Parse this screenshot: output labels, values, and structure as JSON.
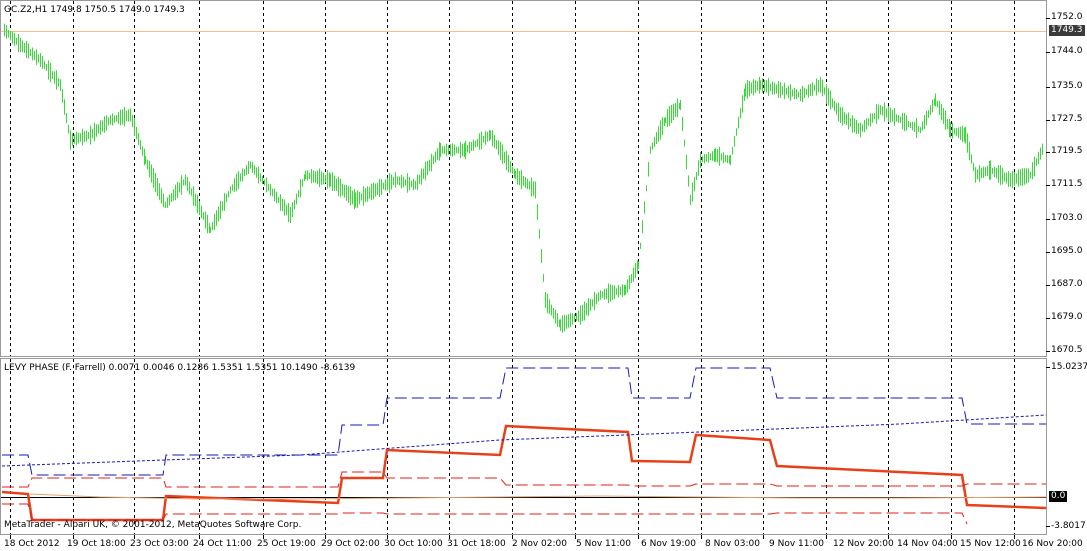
{
  "price_chart": {
    "header": "GC.Z2,H1  1749.8 1750.5 1749.0 1749.3",
    "last_price_badge": "1749.3",
    "y_ticks": [
      "1752.0",
      "1744.0",
      "1735.0",
      "1727.5",
      "1719.5",
      "1711.5",
      "1703.0",
      "1695.0",
      "1687.0",
      "1679.0",
      "1670.5"
    ],
    "colors": {
      "bars": "#33dd33",
      "last_price_line": "#f5c08a",
      "grid": "#000000"
    }
  },
  "indicator": {
    "header": "LEVY PHASE (F. Farrell) 0.0071 0.0046 0.1286 1.5351 1.5351 10.1490 -8.6139",
    "y_ticks": [
      "15.0237",
      "-3.8017"
    ],
    "zero_badge": "0.0",
    "watermark": "MetaTrader - Alpari UK, © 2001-2012, MetaQuotes Software Corp.",
    "colors": {
      "main": "#e8411a",
      "bands": "#e0201a",
      "upper": "#1a1ab8",
      "signal": "#1a1ab8",
      "zero": "#000000"
    }
  },
  "x_axis": {
    "labels": [
      "18 Oct 2012",
      "19 Oct 18:00",
      "23 Oct 03:00",
      "24 Oct 11:00",
      "25 Oct 19:00",
      "29 Oct 02:00",
      "30 Oct 10:00",
      "31 Oct 18:00",
      "2 Nov 02:00",
      "5 Nov 11:00",
      "6 Nov 19:00",
      "8 Nov 03:00",
      "9 Nov 11:00",
      "12 Nov 20:00",
      "14 Nov 04:00",
      "15 Nov 12:00",
      "16 Nov 20:00"
    ]
  }
}
